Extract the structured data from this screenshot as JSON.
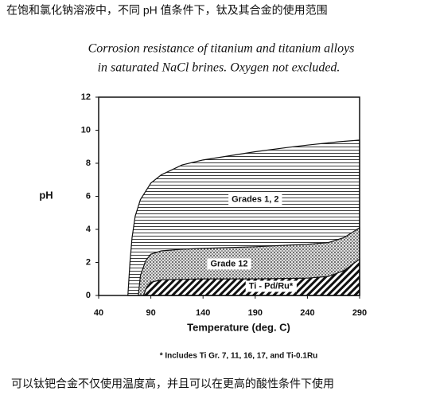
{
  "chart_data": {
    "type": "area",
    "caption_top": "在饱和氯化钠溶液中，不同 pH 值条件下，钛及其合金的使用范围",
    "title": [
      "Corrosion resistance of titanium and titanium alloys",
      "in saturated NaCl brines.  Oxygen not excluded."
    ],
    "xlabel": "Temperature (deg. C)",
    "ylabel": "pH",
    "footnote": "* Includes Ti Gr. 7, 11, 16, 17, and Ti-0.1Ru",
    "caption_bottom": "可以钛钯合金不仅使用温度高，并且可以在更高的酸性条件下使用",
    "xlim": [
      40,
      290
    ],
    "xticks": [
      40,
      90,
      140,
      190,
      240,
      290
    ],
    "ylim": [
      0,
      12
    ],
    "yticks": [
      0,
      2,
      4,
      6,
      8,
      10,
      12
    ],
    "series": [
      {
        "name": "Grades 1, 2",
        "fill": "hlines",
        "x": [
          68,
          70,
          72,
          75,
          80,
          90,
          100,
          120,
          140,
          170,
          190,
          220,
          240,
          270,
          290
        ],
        "values": [
          0,
          2,
          3.5,
          4.8,
          5.8,
          6.8,
          7.3,
          7.9,
          8.2,
          8.5,
          8.7,
          8.95,
          9.1,
          9.3,
          9.4
        ]
      },
      {
        "name": "Grade 12",
        "fill": "dots",
        "x": [
          78,
          80,
          85,
          90,
          100,
          120,
          140,
          190,
          240,
          260,
          275,
          290
        ],
        "values": [
          0,
          1.2,
          2.1,
          2.5,
          2.7,
          2.8,
          2.85,
          2.95,
          3.1,
          3.2,
          3.5,
          4.1
        ]
      },
      {
        "name": "Ti - Pd/Ru*",
        "fill": "diag",
        "x": [
          83,
          86,
          90,
          100,
          140,
          190,
          240,
          260,
          275,
          290
        ],
        "values": [
          0,
          0.5,
          0.8,
          0.95,
          1.0,
          1.0,
          1.05,
          1.15,
          1.5,
          2.2
        ]
      }
    ]
  }
}
